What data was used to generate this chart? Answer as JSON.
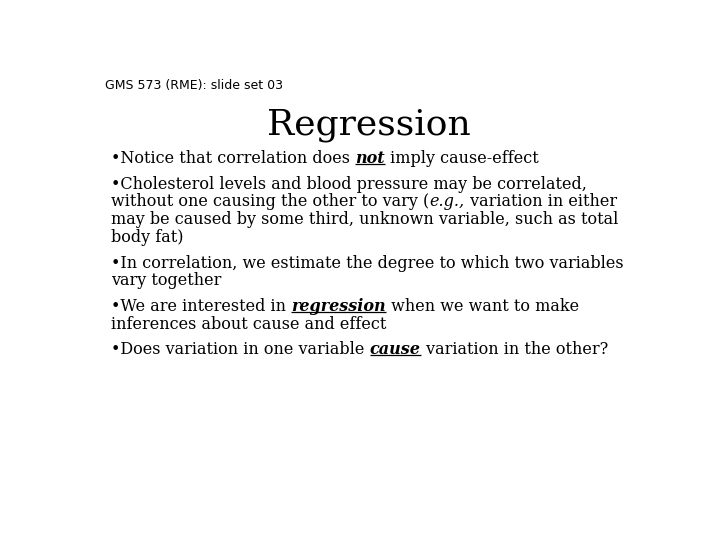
{
  "header": "GMS 573 (RME): slide set 03",
  "title": "Regression",
  "background_color": "#ffffff",
  "header_fontsize": 9,
  "title_fontsize": 26,
  "body_fontsize": 11.5,
  "font_family": "DejaVu Serif",
  "header_font_family": "DejaVu Sans",
  "bullet_lines": [
    [
      {
        "text": "•Notice that correlation does ",
        "bold": false,
        "italic": false,
        "underline": false
      },
      {
        "text": "not",
        "bold": true,
        "italic": true,
        "underline": true
      },
      {
        "text": " imply cause-effect",
        "bold": false,
        "italic": false,
        "underline": false
      }
    ],
    [
      {
        "text": "•Cholesterol levels and blood pressure may be correlated,\nwithout one causing the other to vary (",
        "bold": false,
        "italic": false,
        "underline": false
      },
      {
        "text": "e.g.,",
        "bold": false,
        "italic": true,
        "underline": false
      },
      {
        "text": " variation in either\nmay be caused by some third, unknown variable, such as total\nbody fat)",
        "bold": false,
        "italic": false,
        "underline": false
      }
    ],
    [
      {
        "text": "•In correlation, we estimate the degree to which two variables\nvary together",
        "bold": false,
        "italic": false,
        "underline": false
      }
    ],
    [
      {
        "text": "•We are interested in ",
        "bold": false,
        "italic": false,
        "underline": false
      },
      {
        "text": "regression",
        "bold": true,
        "italic": true,
        "underline": true
      },
      {
        "text": " when we want to make\ninferences about cause and effect",
        "bold": false,
        "italic": false,
        "underline": false
      }
    ],
    [
      {
        "text": "•Does variation in one variable ",
        "bold": false,
        "italic": false,
        "underline": false
      },
      {
        "text": "cause",
        "bold": true,
        "italic": true,
        "underline": true
      },
      {
        "text": " variation in the other?",
        "bold": false,
        "italic": false,
        "underline": false
      }
    ]
  ]
}
